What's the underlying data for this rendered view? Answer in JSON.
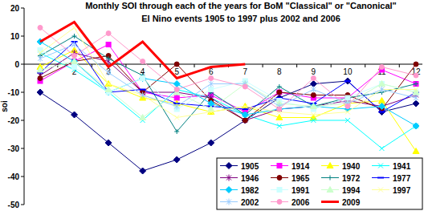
{
  "chart_data": {
    "type": "line",
    "title": "Monthly SOI through each of the years for BoM \"Classical\" or \"Canonical\"\nEl Nino events 1905 to 1997 plus 2002 and 2006",
    "y_label": "soi",
    "categories": [
      "1",
      "2",
      "3",
      "4",
      "5",
      "6",
      "7",
      "8",
      "9",
      "10",
      "11",
      "12"
    ],
    "ylim": [
      -50,
      20
    ],
    "yticks": [
      -50,
      -40,
      -30,
      -20,
      -10,
      0,
      10,
      20
    ],
    "grid": false,
    "legend": "bottom-right",
    "series": [
      {
        "name": "1905",
        "color": "#000080",
        "marker": "diamond",
        "values": [
          -10,
          -18,
          -28,
          -38,
          -34,
          -28,
          -20,
          -12,
          -7,
          -6,
          -17,
          -14
        ]
      },
      {
        "name": "1914",
        "color": "#FF00FF",
        "marker": "square",
        "values": [
          -6,
          1,
          7,
          -10,
          -12,
          -11,
          -17,
          -10,
          -12,
          -12,
          -2,
          -7
        ]
      },
      {
        "name": "1940",
        "color": "#FFFF00",
        "marker": "triangle",
        "values": [
          -1,
          5,
          -7,
          -12,
          -14,
          -17,
          -15,
          -19,
          -19,
          -14,
          -13,
          -31
        ]
      },
      {
        "name": "1941",
        "color": "#00FFFF",
        "marker": "x",
        "values": [
          4,
          -2,
          -10,
          -20,
          -9,
          -12,
          -18,
          -22,
          -20,
          -20,
          -30,
          -22
        ]
      },
      {
        "name": "1946",
        "color": "#800080",
        "marker": "star",
        "values": [
          -4,
          4,
          1,
          -10,
          -10,
          -12,
          -20,
          -16,
          -15,
          -13,
          -15,
          -11
        ]
      },
      {
        "name": "1965",
        "color": "#800000",
        "marker": "circle",
        "values": [
          -5,
          1,
          3,
          -10,
          0,
          -13,
          -20,
          -10,
          -11,
          -11,
          -16,
          0
        ]
      },
      {
        "name": "1972",
        "color": "#008080",
        "marker": "plus",
        "values": [
          3,
          10,
          2,
          -4,
          -24,
          -10,
          -18,
          -8,
          -15,
          -12,
          -10,
          -7
        ]
      },
      {
        "name": "1977",
        "color": "#0000FF",
        "marker": "dash",
        "values": [
          -3,
          8,
          -10,
          -9,
          -14,
          -15,
          -16,
          -12,
          -14,
          -6,
          -17,
          -10
        ]
      },
      {
        "name": "1982",
        "color": "#00CCFF",
        "marker": "diamond",
        "values": [
          8,
          1,
          -10,
          -5,
          -7,
          -14,
          -18,
          -16,
          -15,
          -16,
          -15,
          -22
        ]
      },
      {
        "name": "1991",
        "color": "#CCFFFF",
        "marker": "square",
        "values": [
          5,
          -1,
          -10,
          -5,
          -16,
          -9,
          -6,
          -13,
          -16,
          -12,
          -7,
          -10
        ]
      },
      {
        "name": "1994",
        "color": "#CCFFCC",
        "marker": "triangle",
        "values": [
          -2,
          1,
          -9,
          -19,
          -10,
          -16,
          -7,
          -14,
          -15,
          -14,
          -7,
          -10
        ]
      },
      {
        "name": "1997",
        "color": "#FFFF99",
        "marker": "x",
        "values": [
          4,
          13,
          -7,
          -11,
          -19,
          -17,
          -15,
          -17,
          -18,
          -17,
          -9,
          -9
        ]
      },
      {
        "name": "2002",
        "color": "#99CCFF",
        "marker": "star",
        "values": [
          2,
          7,
          -3,
          -11,
          -15,
          -7,
          -7,
          -15,
          -9,
          -14,
          -9,
          -12
        ]
      },
      {
        "name": "2006",
        "color": "#FF99CC",
        "marker": "circle",
        "values": [
          13,
          3,
          11,
          1,
          -9,
          -5,
          -8,
          -16,
          -5,
          -15,
          -1,
          -4
        ]
      },
      {
        "name": "2009",
        "color": "#FF0000",
        "marker": "none",
        "line_style": "thick",
        "values": [
          8,
          15,
          -1,
          8,
          -5,
          -1,
          0,
          null,
          null,
          null,
          null,
          null
        ]
      }
    ]
  }
}
